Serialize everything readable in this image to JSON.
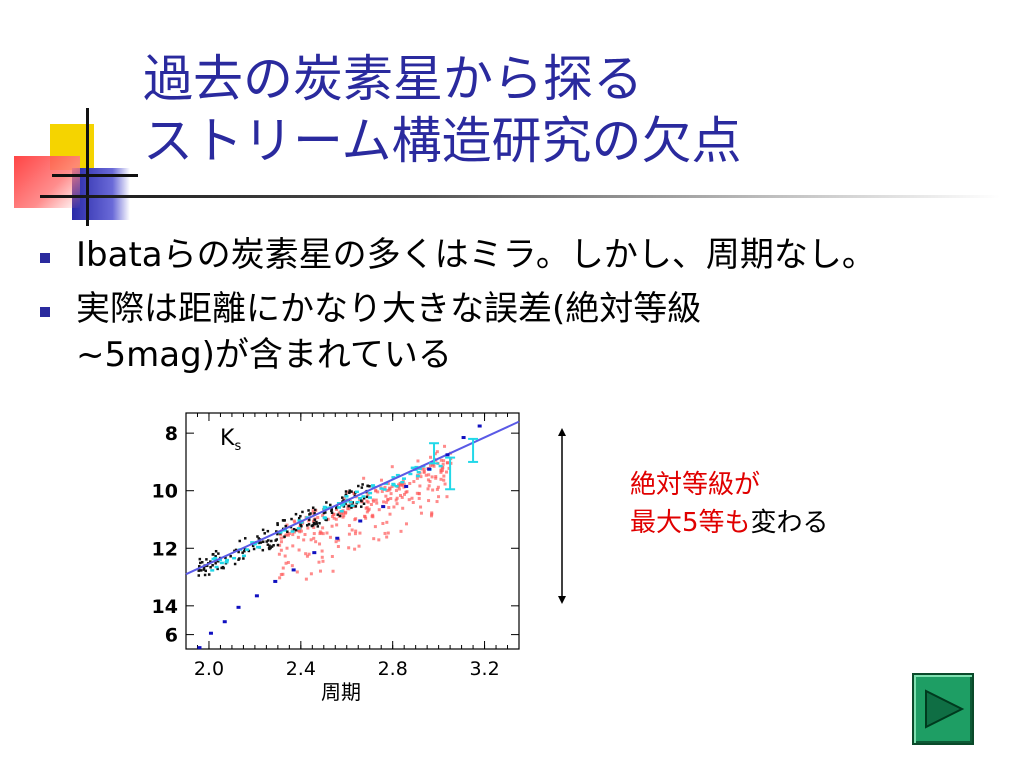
{
  "slide": {
    "title_line1": "過去の炭素星から探る",
    "title_line2": "ストリーム構造研究の欠点",
    "bullets": [
      "Ibataらの炭素星の多くはミラ。しかし、周期なし。",
      "実際は距離にかなり大きな誤差(絶対等級",
      "~5mag)が含まれている"
    ],
    "annotation_red1": "絶対等級が",
    "annotation_red2": "最大5等も",
    "annotation_black2": "変わる",
    "colors": {
      "title": "#2a2a9e",
      "bullet": "#2a2a9e",
      "annotation": "#e00000",
      "play_button": "#1e9e64"
    },
    "nav_icon": "play-next-icon"
  },
  "chart_data": {
    "type": "scatter",
    "panel_label": "Ks",
    "xlabel": "周期",
    "x_ticks": [
      "2.0",
      "2.4",
      "2.8",
      "3.2"
    ],
    "y_ticks": [
      "8",
      "10",
      "12",
      "14",
      "6"
    ],
    "xlim": [
      1.9,
      3.35
    ],
    "ylim": [
      15.5,
      7.3
    ],
    "fit_line": [
      [
        1.9,
        12.9
      ],
      [
        3.35,
        7.6
      ]
    ],
    "lower_sequence": [
      [
        1.95,
        15.4
      ],
      [
        2.0,
        14.9
      ],
      [
        2.06,
        14.5
      ],
      [
        2.12,
        14.0
      ],
      [
        2.2,
        13.6
      ],
      [
        2.28,
        13.1
      ],
      [
        2.36,
        12.7
      ],
      [
        2.45,
        12.1
      ],
      [
        2.55,
        11.6
      ],
      [
        2.65,
        11.0
      ],
      [
        2.75,
        10.5
      ],
      [
        2.85,
        9.8
      ],
      [
        2.95,
        9.2
      ],
      [
        3.03,
        8.7
      ],
      [
        3.1,
        8.1
      ],
      [
        3.17,
        7.7
      ]
    ],
    "cyan_errorbars": [
      [
        2.98,
        8.7,
        0.35
      ],
      [
        3.05,
        9.4,
        0.55
      ],
      [
        3.15,
        8.6,
        0.4
      ]
    ]
  }
}
